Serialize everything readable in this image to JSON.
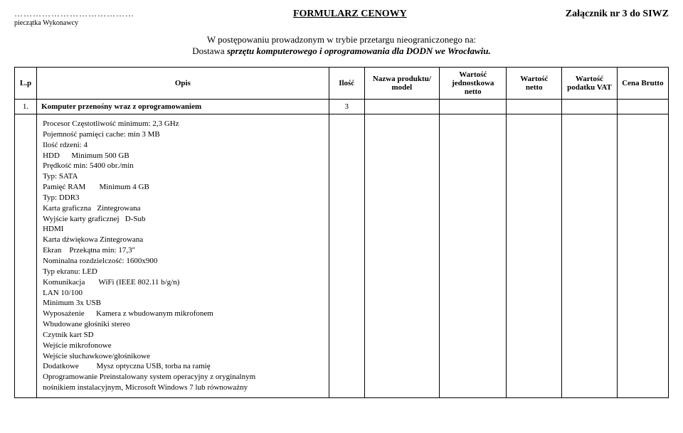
{
  "header": {
    "dots": "…………………………………",
    "stamp_label": "pieczątka Wykonawcy",
    "form_title": "FORMULARZ CENOWY",
    "attachment": "Załącznik nr 3 do SIWZ",
    "sub_line1": "W postępowaniu prowadzonym w trybie przetargu nieograniczonego na:",
    "sub_line2_prefix": "Dostawa ",
    "sub_line2_italic": "sprzętu komputerowego i oprogramowania dla DODN we Wrocławiu."
  },
  "columns": {
    "lp": "L.p",
    "opis": "Opis",
    "ilosc": "Ilość",
    "nazwa": "Nazwa produktu/ model",
    "wj": "Wartość jednostkowa netto",
    "wn": "Wartość netto",
    "wp": "Wartość podatku VAT",
    "cb": "Cena Brutto"
  },
  "row1": {
    "lp": "1.",
    "opis": "Komputer przenośny wraz z oprogramowaniem",
    "ilosc": "3"
  },
  "spec_lines": [
    "Procesor Częstotliwość minimum: 2,3 GHz",
    "Pojemność pamięci cache: min 3 MB",
    "Ilość rdzeni: 4",
    "HDD      Minimum 500 GB",
    "Prędkość min: 5400 obr./min",
    "Typ: SATA",
    "Pamięć RAM       Minimum 4 GB",
    "Typ: DDR3",
    "Karta graficzna   Zintegrowana",
    "Wyjście karty graficznej   D-Sub",
    "HDMI",
    "Karta dźwiękowa Zintegrowana",
    "Ekran    Przekątna min: 17,3''",
    "Nominalna rozdzielczość: 1600x900",
    "Typ ekranu: LED",
    "Komunikacja       WiFi (IEEE 802.11 b/g/n)",
    "LAN 10/100",
    "Minimum 3x USB",
    "Wyposażenie      Kamera z wbudowanym mikrofonem",
    "Wbudowane głośniki stereo",
    "Czytnik kart SD",
    "Wejście mikrofonowe",
    "Wejście słuchawkowe/głośnikowe",
    "Dodatkowe         Mysz optyczna USB, torba na ramię",
    "Oprogramowanie Preinstalowany system operacyjny z oryginalnym",
    "nośnikiem instalacyjnym, Microsoft Windows 7 lub równoważny"
  ]
}
